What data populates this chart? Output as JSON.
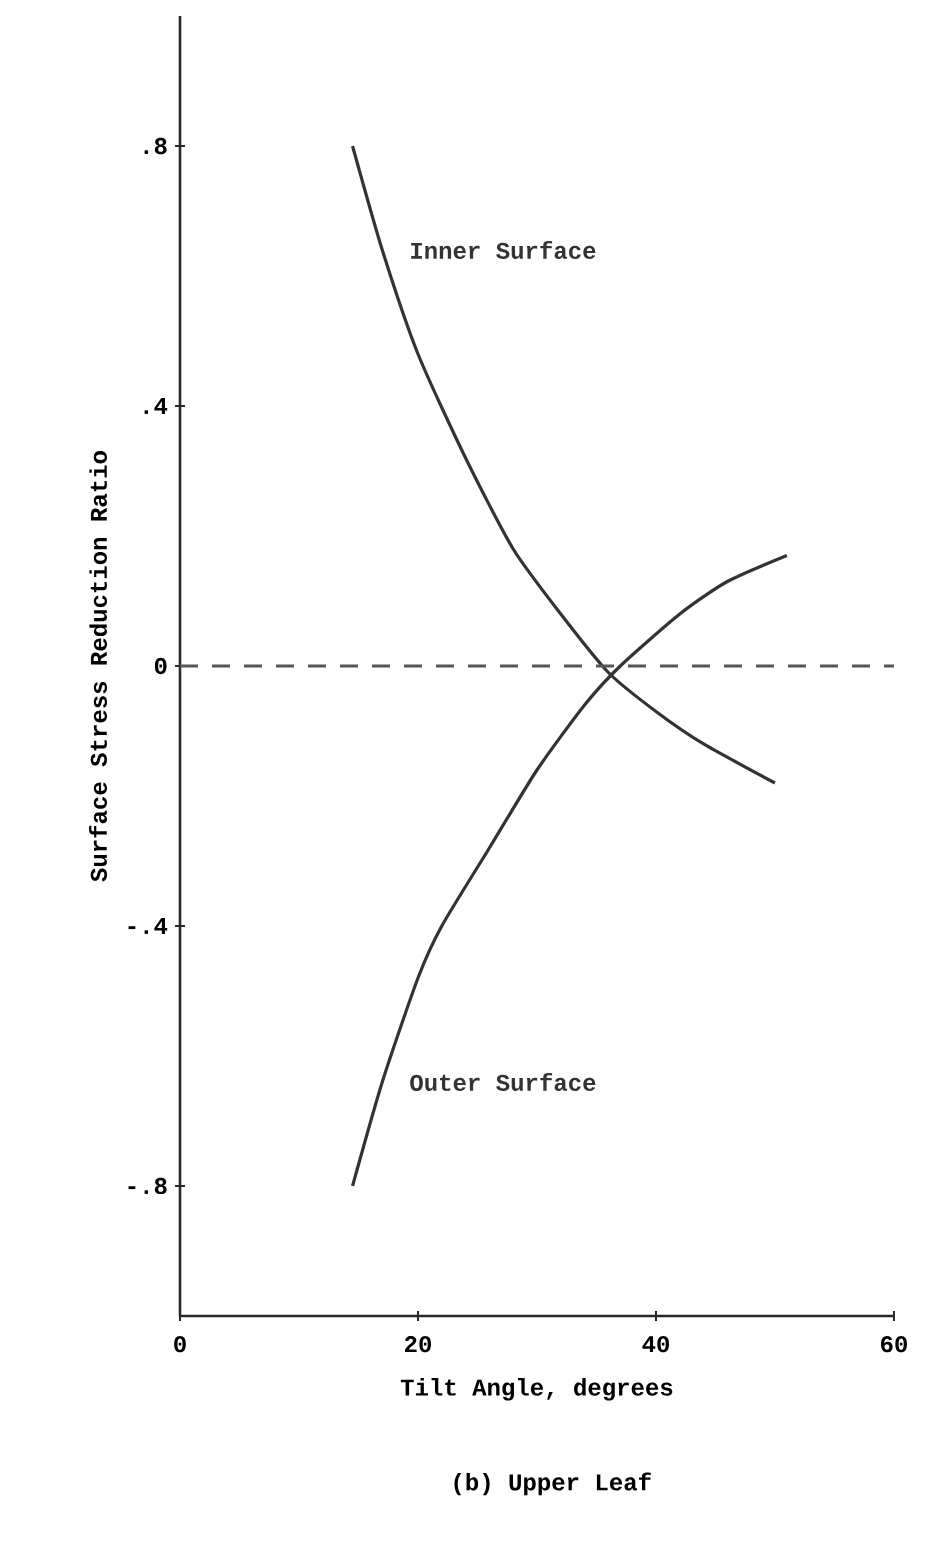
{
  "chart_data": {
    "type": "line",
    "title": "(b) Upper Leaf",
    "xlabel": "Tilt Angle, degrees",
    "ylabel": "Surface Stress Reduction Ratio",
    "xlim": [
      0,
      60
    ],
    "ylim": [
      -1,
      1
    ],
    "xticks": [
      0,
      20,
      40,
      60
    ],
    "yticks": [
      {
        "value": -0.8,
        "label": "-.8"
      },
      {
        "value": -0.4,
        "label": "-.4"
      },
      0,
      {
        "value": 0.4,
        "label": ".4"
      },
      {
        "value": 0.8,
        "label": ".8"
      }
    ],
    "grid": false,
    "legend": false,
    "marker": "none",
    "line_style": "solid",
    "series": [
      {
        "name": "Inner Surface",
        "color": "#333333",
        "x": [
          14.5,
          17,
          20,
          24,
          28,
          32,
          36,
          40,
          44,
          50
        ],
        "values": [
          0.8,
          0.64,
          0.48,
          0.32,
          0.18,
          0.08,
          -0.01,
          -0.07,
          -0.12,
          -0.18
        ]
      },
      {
        "name": "Outer Surface",
        "color": "#333333",
        "x": [
          14.5,
          17,
          20,
          22,
          26,
          30,
          34,
          37,
          42,
          46,
          51
        ],
        "values": [
          -0.8,
          -0.64,
          -0.48,
          -0.4,
          -0.28,
          -0.16,
          -0.06,
          0.0,
          0.08,
          0.13,
          0.17
        ]
      }
    ],
    "ref_lines": [
      {
        "axis": "y",
        "value": 0,
        "line_style": "dashed",
        "color": "#555555"
      }
    ]
  }
}
